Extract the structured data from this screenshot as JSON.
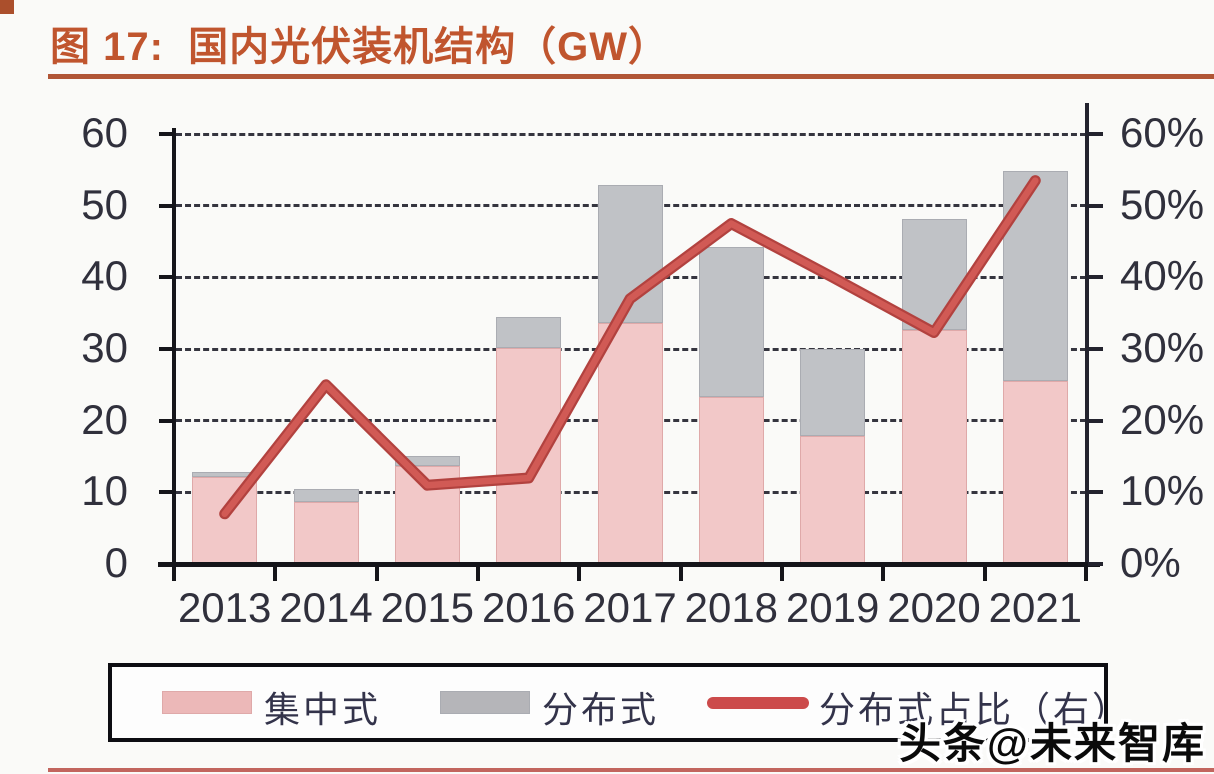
{
  "header": {
    "title": "图 17:  国内光伏装机结构（GW）"
  },
  "watermark": {
    "text": "头条@未来智库"
  },
  "legend": {
    "items": [
      {
        "label": "集中式",
        "swatch": "bar",
        "color": "#ecb8b8"
      },
      {
        "label": "分布式",
        "swatch": "bar",
        "color": "#b5b5b9"
      },
      {
        "label": "分布式占比（右）",
        "swatch": "line",
        "color": "#cc4b4b"
      }
    ]
  },
  "colors": {
    "title": "#c0552e",
    "title_rule": "#b15636",
    "corner": "#ab4f2c",
    "bottom_rule": "#c2655e",
    "bar_centralized": "#f2c8c8",
    "bar_centralized_border": "#dfa9a9",
    "bar_distributed": "#c0c2c6",
    "bar_distributed_border": "#aaacb2",
    "line_outer": "#b2423f",
    "line_inner": "#d15a55",
    "axis_text": "#30303c",
    "grid": "#35353f"
  },
  "chart_data": {
    "type": "combo-stacked-bar-line",
    "title": "国内光伏装机结构（GW）",
    "categories": [
      "2013",
      "2014",
      "2015",
      "2016",
      "2017",
      "2018",
      "2019",
      "2020",
      "2021"
    ],
    "series": [
      {
        "name": "集中式",
        "type": "bar",
        "stack": true,
        "axis": "left",
        "unit": "GW",
        "values": [
          12.1,
          8.6,
          13.7,
          30.2,
          33.6,
          23.3,
          17.8,
          32.7,
          25.6
        ]
      },
      {
        "name": "分布式",
        "type": "bar",
        "stack": true,
        "axis": "left",
        "unit": "GW",
        "values": [
          0.8,
          1.9,
          1.4,
          4.2,
          19.3,
          20.9,
          12.2,
          15.4,
          29.2
        ]
      },
      {
        "name": "分布式占比（右）",
        "type": "line",
        "axis": "right",
        "unit": "%",
        "values": [
          7,
          25,
          11,
          12,
          37,
          47.5,
          40,
          32.3,
          53.5
        ]
      }
    ],
    "left_axis": {
      "min": 0,
      "max": 60,
      "step": 10,
      "labels": [
        "0",
        "10",
        "20",
        "30",
        "40",
        "50",
        "60"
      ]
    },
    "right_axis": {
      "min": 0,
      "max": 60,
      "step": 10,
      "labels": [
        "0%",
        "10%",
        "20%",
        "30%",
        "40%",
        "50%",
        "60%"
      ]
    },
    "grid": "horizontal-dashed",
    "legend_position": "bottom"
  }
}
